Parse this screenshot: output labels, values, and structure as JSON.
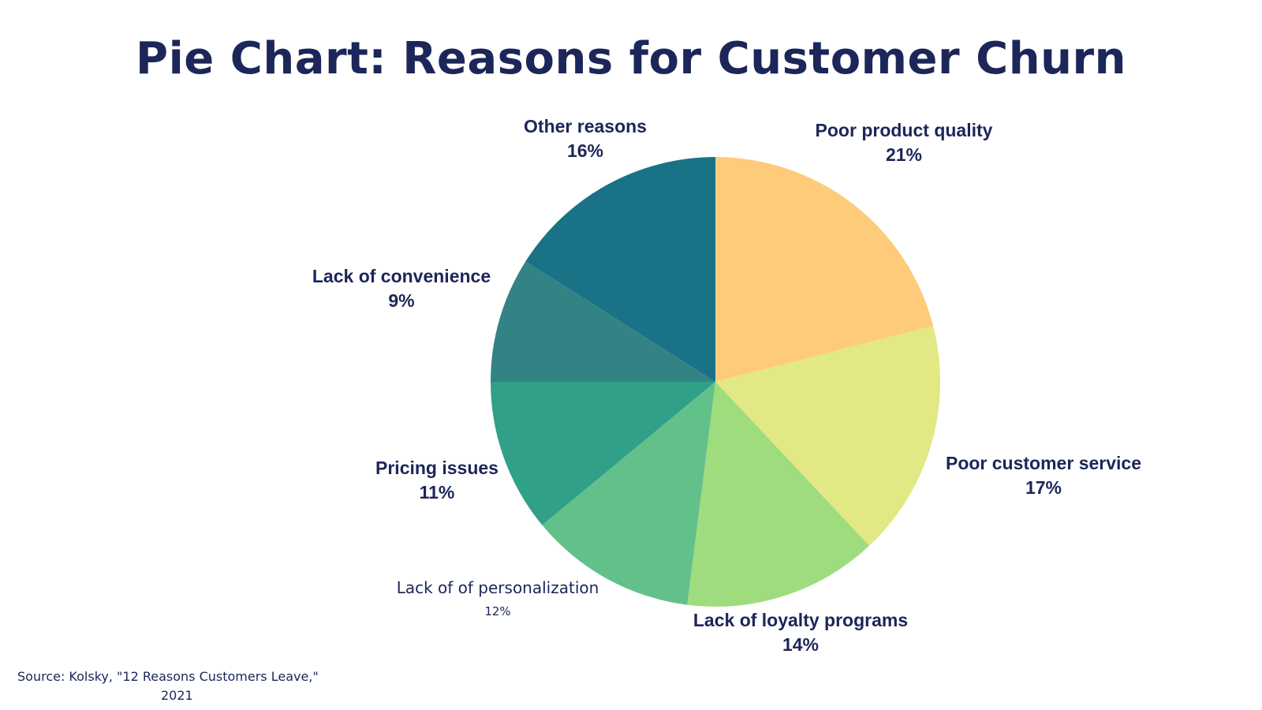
{
  "title": "Pie Chart: Reasons for Customer Churn",
  "source": {
    "line1": "Source:  Kolsky, \"12 Reasons Customers Leave,\"",
    "line2": "2021"
  },
  "chart_data": {
    "type": "pie",
    "title": "Pie Chart: Reasons for Customer Churn",
    "start": "12 o'clock",
    "direction": "clockwise",
    "slices": [
      {
        "label": "Poor product quality",
        "value": 21,
        "value_label": "21%",
        "color": "#fecb7b"
      },
      {
        "label": "Poor customer service",
        "value": 17,
        "value_label": "17%",
        "color": "#e2e883"
      },
      {
        "label": "Lack of loyalty programs",
        "value": 14,
        "value_label": "14%",
        "color": "#9edc7e"
      },
      {
        "label": "Lack of of personalization",
        "value": 12,
        "value_label": "12%",
        "color": "#62c18a"
      },
      {
        "label": "Pricing issues",
        "value": 11,
        "value_label": "11%",
        "color": "#31a089"
      },
      {
        "label": "Lack of convenience",
        "value": 9,
        "value_label": "9%",
        "color": "#348384"
      },
      {
        "label": "Other reasons",
        "value": 16,
        "value_label": "16%",
        "color": "#1a7287"
      }
    ]
  }
}
